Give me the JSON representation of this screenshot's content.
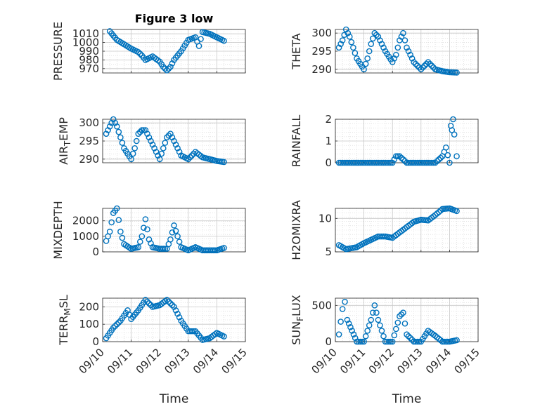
{
  "chart_data": [
    {
      "type": "scatter",
      "title": "Figure 3 low",
      "ylabel": "PRESSURE",
      "xlim": [
        "09/10",
        "09/15"
      ],
      "ylim": [
        965,
        1015
      ],
      "yticks": [
        970,
        980,
        990,
        1000,
        1010
      ],
      "xticks": [
        "09/10",
        "09/11",
        "09/12",
        "09/13",
        "09/14",
        "09/15"
      ],
      "grid": true,
      "marker_color": "#0072BD",
      "x": [
        "2019-09-10 06:00",
        "2019-09-10 09:00",
        "2019-09-10 12:00",
        "2019-09-10 18:00",
        "2019-09-11 00:00",
        "2019-09-11 06:00",
        "2019-09-11 09:00",
        "2019-09-11 12:00",
        "2019-09-11 18:00",
        "2019-09-12 00:00",
        "2019-09-12 03:00",
        "2019-09-12 06:00",
        "2019-09-12 09:00",
        "2019-09-12 12:00",
        "2019-09-12 18:00",
        "2019-09-13 00:00",
        "2019-09-13 06:00",
        "2019-09-13 09:00",
        "2019-09-13 12:00",
        "2019-09-13 18:00",
        "2019-09-14 00:00",
        "2019-09-14 06:00"
      ],
      "y": [
        1013,
        1008,
        1003,
        998,
        993,
        989,
        985,
        980,
        984,
        978,
        972,
        968,
        972,
        980,
        990,
        1003,
        1006,
        996,
        1012,
        1010,
        1006,
        1002
      ]
    },
    {
      "type": "scatter",
      "ylabel": "THETA",
      "xlim": [
        "09/10",
        "09/15"
      ],
      "ylim": [
        289,
        301
      ],
      "yticks": [
        290,
        295,
        300
      ],
      "xticks": [
        "09/10",
        "09/11",
        "09/12",
        "09/13",
        "09/14",
        "09/15"
      ],
      "grid": true,
      "marker_color": "#0072BD",
      "x": [
        "2019-09-10 03:00",
        "2019-09-10 06:00",
        "2019-09-10 09:00",
        "2019-09-10 12:00",
        "2019-09-10 18:00",
        "2019-09-11 00:00",
        "2019-09-11 03:00",
        "2019-09-11 06:00",
        "2019-09-11 09:00",
        "2019-09-11 12:00",
        "2019-09-11 18:00",
        "2019-09-12 00:00",
        "2019-09-12 03:00",
        "2019-09-12 06:00",
        "2019-09-12 09:00",
        "2019-09-12 12:00",
        "2019-09-12 18:00",
        "2019-09-13 00:00",
        "2019-09-13 06:00",
        "2019-09-13 12:00",
        "2019-09-13 18:00",
        "2019-09-14 00:00",
        "2019-09-14 06:00"
      ],
      "y": [
        296,
        298,
        301,
        299,
        293,
        290,
        293,
        297,
        300,
        299,
        295,
        292,
        294,
        298,
        300,
        296,
        292,
        290,
        292,
        290,
        289.5,
        289.2,
        289.1
      ]
    },
    {
      "type": "scatter",
      "ylabel": "AIR_TEMP",
      "xlim": [
        "09/10",
        "09/15"
      ],
      "ylim": [
        289,
        301
      ],
      "yticks": [
        290,
        295,
        300
      ],
      "xticks": [
        "09/10",
        "09/11",
        "09/12",
        "09/13",
        "09/14",
        "09/15"
      ],
      "grid": true,
      "marker_color": "#0072BD",
      "x": [
        "2019-09-10 03:00",
        "2019-09-10 06:00",
        "2019-09-10 09:00",
        "2019-09-10 12:00",
        "2019-09-10 18:00",
        "2019-09-11 00:00",
        "2019-09-11 03:00",
        "2019-09-11 06:00",
        "2019-09-11 09:00",
        "2019-09-11 12:00",
        "2019-09-11 18:00",
        "2019-09-12 00:00",
        "2019-09-12 03:00",
        "2019-09-12 06:00",
        "2019-09-12 09:00",
        "2019-09-12 12:00",
        "2019-09-12 18:00",
        "2019-09-13 00:00",
        "2019-09-13 06:00",
        "2019-09-13 12:00",
        "2019-09-13 18:00",
        "2019-09-14 00:00",
        "2019-09-14 06:00"
      ],
      "y": [
        297,
        299,
        301,
        299,
        293,
        290,
        293,
        297,
        298,
        298,
        294,
        290,
        293,
        296,
        297,
        295,
        291,
        290,
        292,
        290.5,
        290,
        289.5,
        289.2
      ]
    },
    {
      "type": "scatter",
      "ylabel": "RAINFALL",
      "xlim": [
        "09/10",
        "09/15"
      ],
      "ylim": [
        0,
        2
      ],
      "yticks": [
        0,
        1,
        2
      ],
      "xticks": [
        "09/10",
        "09/11",
        "09/12",
        "09/13",
        "09/14",
        "09/15"
      ],
      "grid": true,
      "marker_color": "#0072BD",
      "x": [
        "2019-09-10 03:00",
        "2019-09-10 12:00",
        "2019-09-11 00:00",
        "2019-09-11 12:00",
        "2019-09-12 00:00",
        "2019-09-12 03:00",
        "2019-09-12 06:00",
        "2019-09-12 12:00",
        "2019-09-13 00:00",
        "2019-09-13 12:00",
        "2019-09-13 18:00",
        "2019-09-13 21:00",
        "2019-09-14 00:00",
        "2019-09-14 01:00",
        "2019-09-14 02:00",
        "2019-09-14 03:00",
        "2019-09-14 04:00",
        "2019-09-14 06:00"
      ],
      "y": [
        0,
        0,
        0,
        0,
        0,
        0.3,
        0.3,
        0,
        0,
        0,
        0.3,
        0.7,
        0,
        1.7,
        1.5,
        2.0,
        1.3,
        0.3
      ]
    },
    {
      "type": "scatter",
      "ylabel": "MIXDEPTH",
      "xlim": [
        "09/10",
        "09/15"
      ],
      "ylim": [
        0,
        2800
      ],
      "yticks": [
        0,
        1000,
        2000
      ],
      "xticks": [
        "09/10",
        "09/11",
        "09/12",
        "09/13",
        "09/14",
        "09/15"
      ],
      "grid": true,
      "marker_color": "#0072BD",
      "x": [
        "2019-09-10 03:00",
        "2019-09-10 06:00",
        "2019-09-10 09:00",
        "2019-09-10 12:00",
        "2019-09-10 15:00",
        "2019-09-10 18:00",
        "2019-09-11 00:00",
        "2019-09-11 06:00",
        "2019-09-11 09:00",
        "2019-09-11 12:00",
        "2019-09-11 15:00",
        "2019-09-11 18:00",
        "2019-09-12 00:00",
        "2019-09-12 06:00",
        "2019-09-12 09:00",
        "2019-09-12 12:00",
        "2019-09-12 18:00",
        "2019-09-13 00:00",
        "2019-09-13 06:00",
        "2019-09-13 12:00",
        "2019-09-14 00:00",
        "2019-09-14 06:00"
      ],
      "y": [
        700,
        1300,
        2500,
        2800,
        1300,
        500,
        200,
        300,
        1000,
        2100,
        800,
        300,
        200,
        200,
        800,
        1700,
        300,
        100,
        300,
        100,
        100,
        250
      ]
    },
    {
      "type": "scatter",
      "ylabel": "H2OMIXRA",
      "xlim": [
        "09/10",
        "09/15"
      ],
      "ylim": [
        5,
        11.5
      ],
      "yticks": [
        5,
        10
      ],
      "xticks": [
        "09/10",
        "09/11",
        "09/12",
        "09/13",
        "09/14",
        "09/15"
      ],
      "grid": true,
      "marker_color": "#0072BD",
      "x": [
        "2019-09-10 03:00",
        "2019-09-10 09:00",
        "2019-09-10 18:00",
        "2019-09-11 00:00",
        "2019-09-11 06:00",
        "2019-09-11 12:00",
        "2019-09-11 18:00",
        "2019-09-12 00:00",
        "2019-09-12 06:00",
        "2019-09-12 12:00",
        "2019-09-12 18:00",
        "2019-09-13 00:00",
        "2019-09-13 06:00",
        "2019-09-13 12:00",
        "2019-09-13 18:00",
        "2019-09-14 00:00",
        "2019-09-14 06:00"
      ],
      "y": [
        6.0,
        5.4,
        5.7,
        6.3,
        6.8,
        7.3,
        7.3,
        7.1,
        7.9,
        8.7,
        9.5,
        9.8,
        9.7,
        10.5,
        11.4,
        11.5,
        11.1
      ]
    },
    {
      "type": "scatter",
      "ylabel": "TERR_MSL",
      "xlim": [
        "09/10",
        "09/15"
      ],
      "ylim": [
        0,
        250
      ],
      "yticks": [
        0,
        100,
        200
      ],
      "xticks": [
        "09/10",
        "09/11",
        "09/12",
        "09/13",
        "09/14",
        "09/15"
      ],
      "grid": true,
      "marker_color": "#0072BD",
      "x": [
        "2019-09-10 03:00",
        "2019-09-10 09:00",
        "2019-09-10 15:00",
        "2019-09-10 21:00",
        "2019-09-11 00:00",
        "2019-09-11 06:00",
        "2019-09-11 12:00",
        "2019-09-11 18:00",
        "2019-09-12 00:00",
        "2019-09-12 06:00",
        "2019-09-12 12:00",
        "2019-09-12 18:00",
        "2019-09-13 00:00",
        "2019-09-13 06:00",
        "2019-09-13 12:00",
        "2019-09-13 18:00",
        "2019-09-14 00:00",
        "2019-09-14 06:00"
      ],
      "y": [
        20,
        80,
        120,
        180,
        130,
        180,
        240,
        200,
        210,
        240,
        200,
        120,
        60,
        60,
        10,
        20,
        50,
        30
      ]
    },
    {
      "type": "scatter",
      "ylabel": "SUN_FLUX",
      "xlabel": "Time",
      "xlim": [
        "09/10",
        "09/15"
      ],
      "ylim": [
        0,
        600
      ],
      "yticks": [
        0,
        500
      ],
      "xticks": [
        "09/10",
        "09/11",
        "09/12",
        "09/13",
        "09/14",
        "09/15"
      ],
      "grid": true,
      "marker_color": "#0072BD",
      "x": [
        "2019-09-10 03:00",
        "2019-09-10 06:00",
        "2019-09-10 08:00",
        "2019-09-10 10:00",
        "2019-09-10 14:00",
        "2019-09-10 18:00",
        "2019-09-11 00:00",
        "2019-09-11 06:00",
        "2019-09-11 09:00",
        "2019-09-11 12:00",
        "2019-09-11 18:00",
        "2019-09-12 00:00",
        "2019-09-12 06:00",
        "2019-09-12 09:00",
        "2019-09-12 12:00",
        "2019-09-12 18:00",
        "2019-09-13 00:00",
        "2019-09-13 06:00",
        "2019-09-13 12:00",
        "2019-09-13 18:00",
        "2019-09-14 00:00",
        "2019-09-14 06:00"
      ],
      "y": [
        100,
        450,
        550,
        300,
        150,
        0,
        0,
        300,
        500,
        300,
        0,
        0,
        350,
        400,
        100,
        0,
        0,
        150,
        80,
        0,
        0,
        20
      ]
    }
  ],
  "xlabel": "Time"
}
